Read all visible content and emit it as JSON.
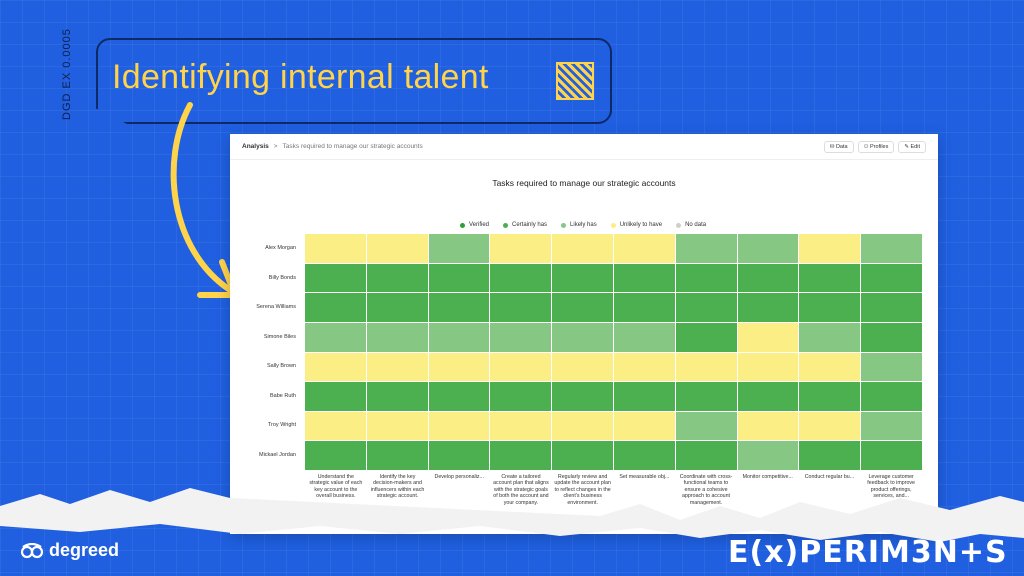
{
  "banner": {
    "title": "Identifying internal talent",
    "code": "DGD   EX 0.0005"
  },
  "breadcrumb": {
    "root": "Analysis",
    "separator": ">",
    "current": "Tasks required to manage our strategic accounts"
  },
  "actions": {
    "data": "Data",
    "profiles": "Profiles",
    "edit": "Edit"
  },
  "chart_data": {
    "type": "heatmap",
    "title": "Tasks required to manage our strategic accounts",
    "legend": [
      {
        "label": "Verified",
        "color": "#2e9e3a"
      },
      {
        "label": "Certainly has",
        "color": "#4caf50"
      },
      {
        "label": "Likely has",
        "color": "#86c784"
      },
      {
        "label": "Unlikely to have",
        "color": "#fbee84"
      },
      {
        "label": "No data",
        "color": "#cfcfcf"
      }
    ],
    "rows": [
      "Alex Morgan",
      "Billy Bonds",
      "Serena Williams",
      "Simone Biles",
      "Sally Brown",
      "Babe Ruth",
      "Troy Wright",
      "Mickael Jordan"
    ],
    "columns": [
      "Understand the strategic value of each key account to the overall business.",
      "Identify the key decision-makers and influencers within each strategic account.",
      "Develop personaliz...",
      "Create a tailored account plan that aligns with the strategic goals of both the account and your company.",
      "Regularly review and update the account plan to reflect changes in the client's business environment.",
      "Set measurable obj...",
      "Coordinate with cross-functional teams to ensure a cohesive approach to account management.",
      "Monitor competitive...",
      "Conduct regular bu...",
      "Leverage customer feedback to improve product offerings, services, and..."
    ],
    "values": [
      [
        "Unlikely to have",
        "Unlikely to have",
        "Likely has",
        "Unlikely to have",
        "Unlikely to have",
        "Unlikely to have",
        "Likely has",
        "Likely has",
        "Unlikely to have",
        "Likely has"
      ],
      [
        "Certainly has",
        "Certainly has",
        "Certainly has",
        "Certainly has",
        "Certainly has",
        "Certainly has",
        "Certainly has",
        "Certainly has",
        "Certainly has",
        "Certainly has"
      ],
      [
        "Certainly has",
        "Certainly has",
        "Certainly has",
        "Certainly has",
        "Certainly has",
        "Certainly has",
        "Certainly has",
        "Certainly has",
        "Certainly has",
        "Certainly has"
      ],
      [
        "Likely has",
        "Likely has",
        "Likely has",
        "Likely has",
        "Likely has",
        "Likely has",
        "Certainly has",
        "Unlikely to have",
        "Likely has",
        "Certainly has"
      ],
      [
        "Unlikely to have",
        "Unlikely to have",
        "Unlikely to have",
        "Unlikely to have",
        "Unlikely to have",
        "Unlikely to have",
        "Unlikely to have",
        "Unlikely to have",
        "Unlikely to have",
        "Likely has"
      ],
      [
        "Certainly has",
        "Certainly has",
        "Certainly has",
        "Certainly has",
        "Certainly has",
        "Certainly has",
        "Certainly has",
        "Certainly has",
        "Certainly has",
        "Certainly has"
      ],
      [
        "Unlikely to have",
        "Unlikely to have",
        "Unlikely to have",
        "Unlikely to have",
        "Unlikely to have",
        "Unlikely to have",
        "Likely has",
        "Unlikely to have",
        "Unlikely to have",
        "Likely has"
      ],
      [
        "Certainly has",
        "Certainly has",
        "Certainly has",
        "Certainly has",
        "Certainly has",
        "Certainly has",
        "Certainly has",
        "Likely has",
        "Certainly has",
        "Certainly has"
      ]
    ]
  },
  "footer": {
    "brand": "degreed",
    "tagline": "E(x)PERIM3N+S"
  },
  "colors": {
    "background": "#1f5fe0",
    "accent_yellow": "#ffd34a"
  }
}
